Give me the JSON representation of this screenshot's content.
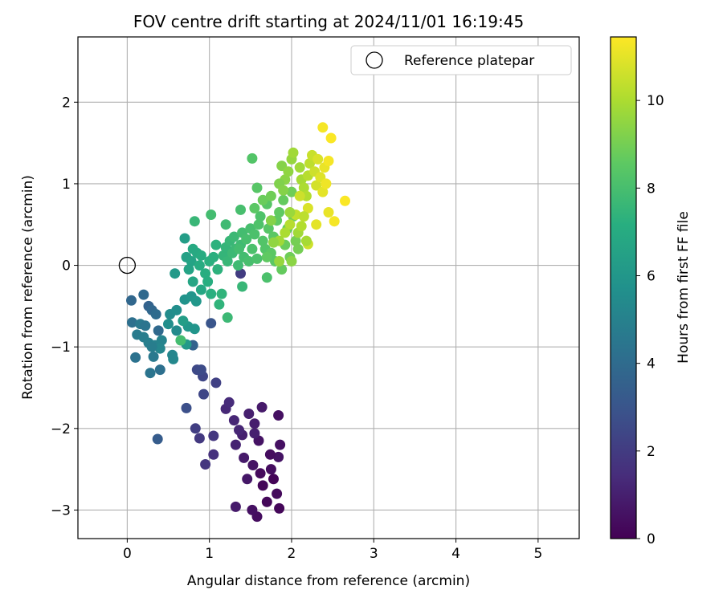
{
  "chart_data": {
    "type": "scatter",
    "title": "FOV centre drift starting at 2024/11/01 16:19:45",
    "xlabel": "Angular distance from reference (arcmin)",
    "ylabel": "Rotation from reference (arcmin)",
    "xlim": [
      -0.6,
      5.5
    ],
    "ylim": [
      -3.35,
      2.8
    ],
    "xticks": [
      0,
      1,
      2,
      3,
      4,
      5
    ],
    "xtick_labels": [
      "0",
      "1",
      "2",
      "3",
      "4",
      "5"
    ],
    "yticks": [
      -3,
      -2,
      -1,
      0,
      1,
      2
    ],
    "ytick_labels": [
      "−3",
      "−2",
      "−1",
      "0",
      "1",
      "2"
    ],
    "grid": true,
    "legend": {
      "position": "top-right",
      "entries": [
        "Reference platepar"
      ]
    },
    "reference_point": {
      "x": 0,
      "y": 0,
      "label": "Reference platepar"
    },
    "colorbar": {
      "label": "Hours from first FF file",
      "colormap": "viridis",
      "range": [
        0,
        11.45
      ],
      "ticks": [
        0,
        2,
        4,
        6,
        8,
        10
      ],
      "tick_labels": [
        "0",
        "2",
        "4",
        "6",
        "8",
        "10"
      ]
    },
    "points": [
      [
        1.78,
        -2.62,
        0.1
      ],
      [
        1.85,
        -2.98,
        0.2
      ],
      [
        1.58,
        -3.08,
        0.4
      ],
      [
        1.52,
        -3.0,
        0.5
      ],
      [
        1.82,
        -2.8,
        0.3
      ],
      [
        1.7,
        -2.9,
        0.2
      ],
      [
        1.62,
        -2.55,
        0.3
      ],
      [
        1.75,
        -2.5,
        0.4
      ],
      [
        1.65,
        -2.7,
        0.2
      ],
      [
        1.86,
        -2.2,
        0.5
      ],
      [
        1.84,
        -2.35,
        0.6
      ],
      [
        1.74,
        -2.32,
        0.4
      ],
      [
        1.6,
        -2.15,
        0.6
      ],
      [
        1.53,
        -2.45,
        0.6
      ],
      [
        1.46,
        -2.62,
        0.7
      ],
      [
        1.42,
        -2.36,
        0.8
      ],
      [
        1.55,
        -2.06,
        1.0
      ],
      [
        1.4,
        -2.08,
        1.0
      ],
      [
        1.36,
        -2.02,
        1.2
      ],
      [
        1.3,
        -1.9,
        1.2
      ],
      [
        1.2,
        -1.76,
        1.3
      ],
      [
        1.24,
        -1.68,
        1.4
      ],
      [
        1.48,
        -1.82,
        1.0
      ],
      [
        1.64,
        -1.74,
        0.8
      ],
      [
        1.84,
        -1.84,
        0.5
      ],
      [
        1.55,
        -1.94,
        0.9
      ],
      [
        1.32,
        -2.2,
        1.1
      ],
      [
        1.32,
        -2.96,
        0.8
      ],
      [
        1.05,
        -2.32,
        1.6
      ],
      [
        0.95,
        -2.44,
        1.8
      ],
      [
        0.88,
        -2.12,
        1.9
      ],
      [
        0.83,
        -2.0,
        2.1
      ],
      [
        1.05,
        -2.09,
        1.8
      ],
      [
        1.08,
        -1.44,
        2.2
      ],
      [
        0.92,
        -1.36,
        2.4
      ],
      [
        0.85,
        -1.28,
        2.5
      ],
      [
        0.93,
        -1.58,
        2.4
      ],
      [
        0.72,
        -1.75,
        2.8
      ],
      [
        0.37,
        -2.13,
        3.3
      ],
      [
        1.38,
        -0.1,
        2.0
      ],
      [
        1.02,
        -0.71,
        3.0
      ],
      [
        0.9,
        -1.28,
        2.6
      ],
      [
        0.8,
        -0.98,
        3.6
      ],
      [
        0.4,
        -1.28,
        4.2
      ],
      [
        0.28,
        -1.32,
        4.4
      ],
      [
        0.32,
        -1.12,
        4.6
      ],
      [
        0.1,
        -1.13,
        4.3
      ],
      [
        0.05,
        -0.43,
        3.8
      ],
      [
        0.06,
        -0.7,
        4.2
      ],
      [
        0.2,
        -0.36,
        3.9
      ],
      [
        0.26,
        -0.5,
        3.6
      ],
      [
        0.3,
        -0.55,
        3.8
      ],
      [
        0.35,
        -0.6,
        4.0
      ],
      [
        0.38,
        -0.8,
        3.9
      ],
      [
        0.16,
        -0.72,
        4.6
      ],
      [
        0.22,
        -0.74,
        4.4
      ],
      [
        0.12,
        -0.85,
        4.7
      ],
      [
        0.2,
        -0.88,
        4.8
      ],
      [
        0.26,
        -0.95,
        4.9
      ],
      [
        0.34,
        -0.98,
        5.0
      ],
      [
        0.42,
        -0.92,
        5.1
      ],
      [
        0.4,
        -1.02,
        5.2
      ],
      [
        0.3,
        -1.0,
        4.8
      ],
      [
        0.56,
        -1.15,
        5.3
      ],
      [
        0.55,
        -1.1,
        5.2
      ],
      [
        0.6,
        -0.8,
        5.4
      ],
      [
        0.5,
        -0.72,
        5.6
      ],
      [
        0.52,
        -0.6,
        5.5
      ],
      [
        0.6,
        -0.55,
        5.6
      ],
      [
        0.7,
        -0.42,
        5.8
      ],
      [
        0.78,
        -0.38,
        5.9
      ],
      [
        0.84,
        -0.44,
        6.0
      ],
      [
        0.74,
        -0.75,
        6.0
      ],
      [
        0.82,
        -0.78,
        5.9
      ],
      [
        0.72,
        -0.97,
        6.1
      ],
      [
        0.68,
        -0.68,
        6.3
      ],
      [
        0.58,
        -0.1,
        6.1
      ],
      [
        0.7,
        0.33,
        6.3
      ],
      [
        0.72,
        0.1,
        6.5
      ],
      [
        0.78,
        0.05,
        6.6
      ],
      [
        0.75,
        -0.05,
        6.6
      ],
      [
        0.8,
        -0.2,
        6.7
      ],
      [
        0.9,
        -0.3,
        6.8
      ],
      [
        0.8,
        0.2,
        6.9
      ],
      [
        0.85,
        0.15,
        6.9
      ],
      [
        0.9,
        0.12,
        7.0
      ],
      [
        0.88,
        0.0,
        7.0
      ],
      [
        0.95,
        -0.1,
        7.1
      ],
      [
        0.98,
        -0.2,
        7.1
      ],
      [
        1.02,
        -0.35,
        7.2
      ],
      [
        1.0,
        0.05,
        7.2
      ],
      [
        1.05,
        0.1,
        7.2
      ],
      [
        1.08,
        0.25,
        7.3
      ],
      [
        1.1,
        -0.05,
        7.3
      ],
      [
        1.12,
        -0.48,
        7.4
      ],
      [
        1.15,
        -0.35,
        7.4
      ],
      [
        1.17,
        0.12,
        7.5
      ],
      [
        1.2,
        0.22,
        7.5
      ],
      [
        1.22,
        0.05,
        7.6
      ],
      [
        1.25,
        0.3,
        7.6
      ],
      [
        1.28,
        0.15,
        7.7
      ],
      [
        1.3,
        0.35,
        7.7
      ],
      [
        1.32,
        0.2,
        7.7
      ],
      [
        1.35,
        0.0,
        7.8
      ],
      [
        1.38,
        0.25,
        7.8
      ],
      [
        1.4,
        0.4,
        7.9
      ],
      [
        1.42,
        0.1,
        7.9
      ],
      [
        1.45,
        0.32,
        8.0
      ],
      [
        1.48,
        0.05,
        8.0
      ],
      [
        1.5,
        0.45,
        8.0
      ],
      [
        1.52,
        0.2,
        8.1
      ],
      [
        1.55,
        0.38,
        8.1
      ],
      [
        1.58,
        0.08,
        8.1
      ],
      [
        1.6,
        0.5,
        8.2
      ],
      [
        1.62,
        0.6,
        8.2
      ],
      [
        1.65,
        0.3,
        8.3
      ],
      [
        1.68,
        0.2,
        8.3
      ],
      [
        1.7,
        0.75,
        8.4
      ],
      [
        1.72,
        0.45,
        8.4
      ],
      [
        1.75,
        0.15,
        8.5
      ],
      [
        1.78,
        0.35,
        8.5
      ],
      [
        1.8,
        0.05,
        8.5
      ],
      [
        1.82,
        0.55,
        8.6
      ],
      [
        1.85,
        0.65,
        8.6
      ],
      [
        1.88,
        -0.05,
        8.7
      ],
      [
        1.9,
        0.8,
        8.7
      ],
      [
        1.92,
        0.25,
        8.8
      ],
      [
        1.95,
        0.45,
        8.8
      ],
      [
        1.98,
        0.1,
        8.9
      ],
      [
        2.0,
        0.9,
        8.9
      ],
      [
        2.02,
        0.6,
        9.0
      ],
      [
        2.05,
        0.3,
        9.0
      ],
      [
        2.08,
        0.2,
        9.0
      ],
      [
        1.7,
        0.1,
        8.6
      ],
      [
        1.65,
        0.8,
        8.8
      ],
      [
        1.58,
        0.95,
        8.4
      ],
      [
        1.52,
        1.31,
        8.3
      ],
      [
        1.38,
        0.68,
        8.0
      ],
      [
        1.36,
        0.2,
        7.9
      ],
      [
        1.4,
        -0.26,
        7.6
      ],
      [
        1.7,
        -0.15,
        8.1
      ],
      [
        1.2,
        0.5,
        7.8
      ],
      [
        0.82,
        0.54,
        7.6
      ],
      [
        1.02,
        0.62,
        7.9
      ],
      [
        1.22,
        -0.64,
        7.7
      ],
      [
        0.65,
        -0.92,
        7.9
      ],
      [
        1.55,
        0.7,
        8.5
      ],
      [
        1.75,
        0.85,
        8.9
      ],
      [
        1.88,
        1.22,
        9.3
      ],
      [
        1.92,
        1.05,
        9.4
      ],
      [
        1.96,
        1.15,
        9.5
      ],
      [
        2.0,
        1.3,
        9.6
      ],
      [
        2.02,
        1.38,
        9.8
      ],
      [
        1.85,
        1.0,
        9.2
      ],
      [
        1.9,
        0.92,
        9.3
      ],
      [
        2.1,
        1.2,
        9.8
      ],
      [
        2.12,
        1.05,
        9.9
      ],
      [
        2.15,
        0.95,
        10.0
      ],
      [
        2.18,
        0.85,
        10.1
      ],
      [
        2.2,
        1.1,
        10.2
      ],
      [
        2.22,
        1.25,
        10.3
      ],
      [
        2.25,
        1.35,
        10.5
      ],
      [
        2.28,
        1.15,
        10.6
      ],
      [
        2.3,
        0.98,
        10.7
      ],
      [
        2.32,
        1.3,
        10.8
      ],
      [
        2.35,
        1.08,
        10.9
      ],
      [
        2.38,
        0.9,
        11.0
      ],
      [
        2.4,
        1.2,
        11.1
      ],
      [
        2.42,
        1.0,
        11.2
      ],
      [
        2.45,
        1.28,
        11.3
      ],
      [
        2.48,
        1.56,
        11.4
      ],
      [
        2.38,
        1.69,
        11.3
      ],
      [
        2.45,
        0.65,
        11.1
      ],
      [
        2.52,
        0.54,
        11.3
      ],
      [
        2.65,
        0.79,
        11.4
      ],
      [
        2.3,
        0.5,
        11.0
      ],
      [
        2.2,
        0.7,
        10.8
      ],
      [
        2.1,
        0.85,
        10.6
      ],
      [
        2.05,
        0.62,
        10.4
      ],
      [
        1.98,
        0.5,
        10.2
      ],
      [
        1.92,
        0.4,
        10.0
      ],
      [
        1.85,
        0.3,
        9.8
      ],
      [
        2.0,
        0.05,
        9.4
      ],
      [
        1.85,
        0.05,
        9.6
      ],
      [
        2.2,
        0.26,
        10.6
      ],
      [
        2.15,
        0.6,
        10.3
      ],
      [
        1.78,
        0.28,
        9.5
      ],
      [
        2.08,
        0.4,
        9.8
      ],
      [
        1.75,
        0.55,
        9.3
      ],
      [
        2.12,
        0.48,
        10.1
      ],
      [
        2.18,
        0.3,
        9.9
      ],
      [
        1.98,
        0.65,
        9.7
      ]
    ]
  }
}
